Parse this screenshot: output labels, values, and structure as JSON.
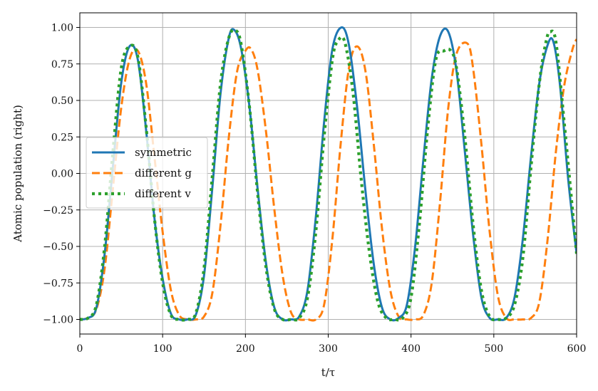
{
  "chart_data": {
    "type": "line",
    "xlabel": "t/τ",
    "ylabel": "Atomic population (right)",
    "xlim": [
      0,
      600
    ],
    "ylim": [
      -1.1,
      1.1
    ],
    "x_ticks": [
      0,
      100,
      200,
      300,
      400,
      500,
      600
    ],
    "y_ticks": [
      -1.0,
      -0.75,
      -0.5,
      -0.25,
      0.0,
      0.25,
      0.5,
      0.75,
      1.0
    ],
    "x_tick_labels": [
      "0",
      "100",
      "200",
      "300",
      "400",
      "500",
      "600"
    ],
    "y_tick_labels": [
      "−1.00",
      "−0.75",
      "−0.50",
      "−0.25",
      "0.00",
      "0.25",
      "0.50",
      "0.75",
      "1.00"
    ],
    "grid": true,
    "legend_position": "center-left",
    "series": [
      {
        "name": "symmetric",
        "color": "#1f77b4",
        "style": "solid",
        "x": [
          0,
          10,
          20,
          30,
          40,
          50,
          60,
          70,
          80,
          90,
          100,
          110,
          120,
          130,
          140,
          150,
          160,
          170,
          180,
          187,
          195,
          205,
          215,
          225,
          235,
          245,
          255,
          265,
          275,
          285,
          295,
          305,
          316,
          325,
          335,
          345,
          355,
          365,
          375,
          385,
          395,
          405,
          415,
          425,
          435,
          445,
          455,
          465,
          475,
          485,
          495,
          505,
          515,
          525,
          535,
          545,
          555,
          565,
          572,
          580,
          590,
          600
        ],
        "y": [
          -1.0,
          -0.99,
          -0.92,
          -0.55,
          0.05,
          0.62,
          0.87,
          0.78,
          0.3,
          -0.3,
          -0.72,
          -0.96,
          -1.0,
          -1.0,
          -0.97,
          -0.7,
          -0.1,
          0.55,
          0.93,
          0.98,
          0.85,
          0.45,
          -0.12,
          -0.62,
          -0.92,
          -1.0,
          -1.0,
          -0.98,
          -0.8,
          -0.3,
          0.35,
          0.85,
          1.0,
          0.88,
          0.45,
          -0.12,
          -0.62,
          -0.92,
          -1.0,
          -0.99,
          -0.9,
          -0.5,
          0.1,
          0.65,
          0.94,
          0.97,
          0.7,
          0.15,
          -0.42,
          -0.85,
          -0.99,
          -1.0,
          -0.99,
          -0.85,
          -0.45,
          0.12,
          0.62,
          0.88,
          0.9,
          0.6,
          -0.05,
          -0.55
        ]
      },
      {
        "name": "different g",
        "color": "#ff7f0e",
        "style": "dashed",
        "x": [
          0,
          10,
          20,
          30,
          40,
          50,
          60,
          70,
          80,
          90,
          100,
          110,
          120,
          130,
          140,
          150,
          160,
          170,
          180,
          190,
          200,
          207,
          215,
          225,
          235,
          245,
          255,
          265,
          275,
          285,
          295,
          305,
          315,
          325,
          335,
          345,
          355,
          365,
          375,
          385,
          395,
          405,
          415,
          425,
          435,
          445,
          455,
          468,
          475,
          485,
          495,
          505,
          515,
          525,
          535,
          545,
          555,
          565,
          575,
          585,
          595,
          600
        ],
        "y": [
          -1.0,
          -0.99,
          -0.93,
          -0.65,
          -0.1,
          0.45,
          0.78,
          0.84,
          0.62,
          0.12,
          -0.4,
          -0.8,
          -0.97,
          -1.0,
          -1.0,
          -0.98,
          -0.82,
          -0.35,
          0.25,
          0.7,
          0.84,
          0.85,
          0.7,
          0.28,
          -0.25,
          -0.7,
          -0.95,
          -1.0,
          -1.0,
          -1.0,
          -0.9,
          -0.45,
          0.2,
          0.72,
          0.87,
          0.7,
          0.2,
          -0.38,
          -0.8,
          -0.98,
          -1.0,
          -1.0,
          -0.97,
          -0.75,
          -0.2,
          0.45,
          0.82,
          0.89,
          0.72,
          0.2,
          -0.4,
          -0.84,
          -0.99,
          -1.0,
          -1.0,
          -0.99,
          -0.88,
          -0.45,
          0.15,
          0.6,
          0.85,
          0.92
        ]
      },
      {
        "name": "different v",
        "color": "#2ca02c",
        "style": "dotted",
        "x": [
          0,
          10,
          20,
          30,
          40,
          50,
          60,
          70,
          80,
          90,
          100,
          110,
          120,
          130,
          140,
          150,
          160,
          170,
          180,
          188,
          195,
          205,
          215,
          225,
          235,
          245,
          255,
          265,
          275,
          285,
          295,
          305,
          312,
          320,
          330,
          340,
          350,
          360,
          370,
          380,
          390,
          400,
          410,
          420,
          430,
          440,
          448,
          455,
          465,
          475,
          485,
          495,
          505,
          515,
          525,
          535,
          545,
          555,
          563,
          568,
          575,
          585,
          595,
          600
        ],
        "y": [
          -1.0,
          -0.99,
          -0.9,
          -0.5,
          0.15,
          0.72,
          0.87,
          0.8,
          0.32,
          -0.3,
          -0.75,
          -0.97,
          -1.0,
          -1.0,
          -0.96,
          -0.65,
          -0.02,
          0.62,
          0.93,
          0.98,
          0.88,
          0.45,
          -0.15,
          -0.65,
          -0.93,
          -1.0,
          -1.0,
          -0.99,
          -0.85,
          -0.4,
          0.25,
          0.78,
          0.91,
          0.9,
          0.55,
          -0.05,
          -0.55,
          -0.88,
          -0.99,
          -1.0,
          -0.99,
          -0.85,
          -0.35,
          0.3,
          0.78,
          0.84,
          0.84,
          0.72,
          0.25,
          -0.35,
          -0.8,
          -0.98,
          -1.0,
          -0.99,
          -0.9,
          -0.58,
          0.05,
          0.62,
          0.9,
          0.97,
          0.9,
          0.35,
          -0.25,
          -0.55
        ]
      }
    ]
  }
}
